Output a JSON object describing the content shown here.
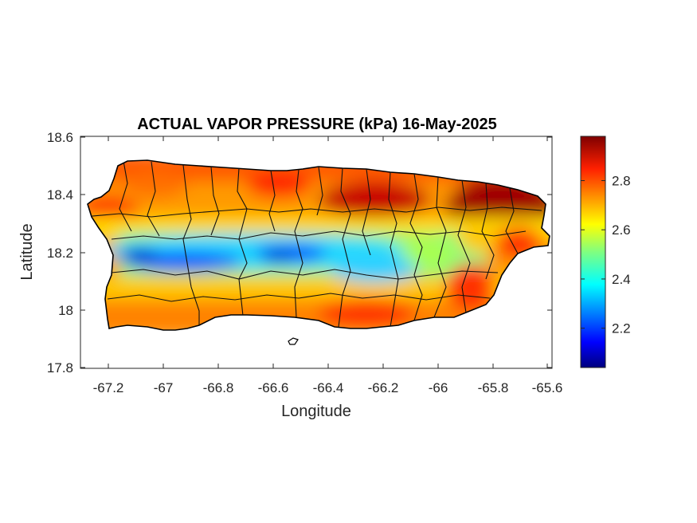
{
  "map": {
    "title": "ACTUAL VAPOR PRESSURE (kPa) 16-May-2025",
    "xlabel": "Longitude",
    "ylabel": "Latitude",
    "lon_ticks": [
      "-67.2",
      "-67",
      "-66.8",
      "-66.6",
      "-66.4",
      "-66.2",
      "-66",
      "-65.8",
      "-65.6"
    ],
    "lat_ticks": [
      "18.6",
      "18.4",
      "18.2",
      "18",
      "17.8"
    ]
  },
  "chart_data": {
    "type": "heatmap",
    "title": "ACTUAL VAPOR PRESSURE (kPa) 16-May-2025",
    "xlabel": "Longitude",
    "ylabel": "Latitude",
    "xlim": [
      -67.3,
      -65.58
    ],
    "ylim": [
      17.8,
      18.6
    ],
    "x_ticks": [
      -67.2,
      -67,
      -66.8,
      -66.6,
      -66.4,
      -66.2,
      -66,
      -65.8,
      -65.6
    ],
    "y_ticks": [
      18.6,
      18.4,
      18.2,
      18,
      17.8
    ],
    "colorbar": {
      "range": [
        2.04,
        2.98
      ],
      "ticks": [
        2.2,
        2.4,
        2.6,
        2.8
      ],
      "tick_labels": [
        "2.2",
        "2.4",
        "2.6",
        "2.8"
      ],
      "colormap": "jet"
    },
    "pattern": "low values (about 2.1-2.3 kPa) along the central mountain belt near latitude 18.17-18.22; high values (about 2.85-2.98 kPa) on the northeast coast; about 2.7-2.85 kPa along the southern and northern coasts"
  }
}
